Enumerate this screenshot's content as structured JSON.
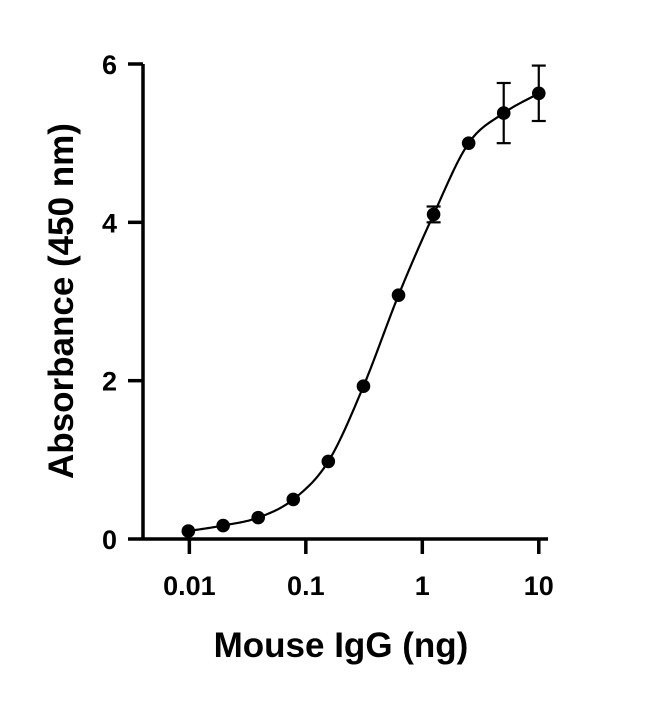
{
  "chart_data": {
    "type": "scatter",
    "title": "",
    "xlabel": "Mouse IgG (ng)",
    "ylabel": "Absorbance (450 nm)",
    "x_scale": "log",
    "xlim": [
      0.004,
      12
    ],
    "ylim": [
      0,
      6
    ],
    "x_ticks": [
      0.01,
      0.1,
      1,
      10
    ],
    "x_tick_labels": [
      "0.01",
      "0.1",
      "1",
      "10"
    ],
    "y_ticks": [
      0,
      2,
      4,
      6
    ],
    "y_tick_labels": [
      "0",
      "2",
      "4",
      "6"
    ],
    "grid": false,
    "legend": "none",
    "fit_curve": true,
    "color": "#000000",
    "series": [
      {
        "x": [
          0.0098,
          0.0195,
          0.039,
          0.078,
          0.156,
          0.3125,
          0.625,
          1.25,
          2.5,
          5,
          10
        ],
        "y": [
          0.1,
          0.17,
          0.27,
          0.5,
          0.98,
          1.93,
          3.08,
          4.1,
          5.0,
          5.38,
          5.63
        ],
        "error": [
          0,
          0,
          0,
          0,
          0,
          0,
          0,
          0.1,
          0,
          0.38,
          0.35
        ]
      }
    ]
  }
}
